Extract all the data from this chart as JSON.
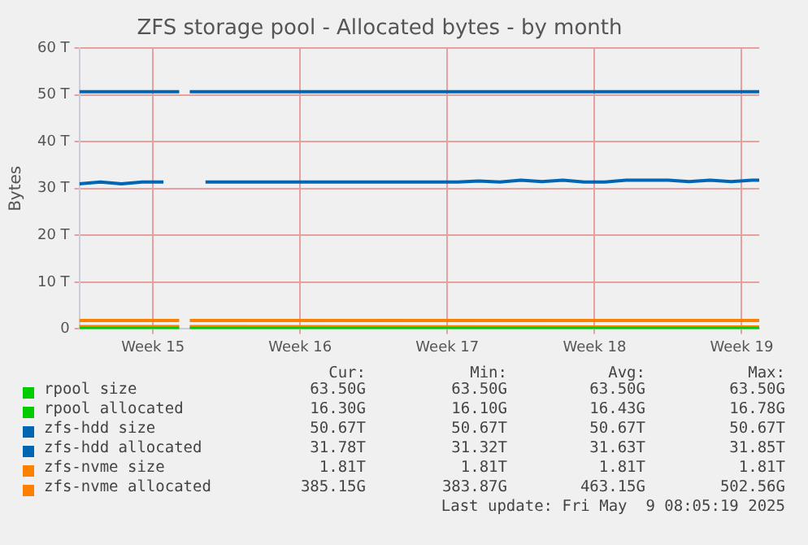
{
  "chart_data": {
    "type": "line",
    "title": "ZFS storage pool - Allocated bytes - by month",
    "ylabel": "Bytes",
    "x": [
      "2025-04-07",
      "2025-04-08",
      "2025-04-09",
      "2025-04-10",
      "2025-04-11",
      "2025-04-12",
      "2025-04-13",
      "2025-04-14",
      "2025-04-15",
      "2025-04-16",
      "2025-04-17",
      "2025-04-18",
      "2025-04-19",
      "2025-04-20",
      "2025-04-21",
      "2025-04-22",
      "2025-04-23",
      "2025-04-24",
      "2025-04-25",
      "2025-04-26",
      "2025-04-27",
      "2025-04-28",
      "2025-04-29",
      "2025-04-30",
      "2025-05-01",
      "2025-05-02",
      "2025-05-03",
      "2025-05-04",
      "2025-05-05",
      "2025-05-06",
      "2025-05-07",
      "2025-05-08",
      "2025-05-09",
      "2025-05-09T08:00"
    ],
    "xlim": [
      "2025-04-07",
      "2025-05-09T08:00"
    ],
    "xticks": [
      {
        "value": "2025-04-10T12:00",
        "label": "Week 15"
      },
      {
        "value": "2025-04-17T12:00",
        "label": "Week 16"
      },
      {
        "value": "2025-04-24T12:00",
        "label": "Week 17"
      },
      {
        "value": "2025-05-01T12:00",
        "label": "Week 18"
      },
      {
        "value": "2025-05-08T12:00",
        "label": "Week 19"
      }
    ],
    "ylim": [
      0,
      60
    ],
    "yticks": [
      {
        "value": 0,
        "label": "0"
      },
      {
        "value": 10,
        "label": "10 T"
      },
      {
        "value": 20,
        "label": "20 T"
      },
      {
        "value": 30,
        "label": "30 T"
      },
      {
        "value": 40,
        "label": "40 T"
      },
      {
        "value": 50,
        "label": "50 T"
      },
      {
        "value": 60,
        "label": "60 T"
      }
    ],
    "series": [
      {
        "name": "rpool size",
        "color": "#00cc00",
        "x": [
          "2025-04-07",
          "2025-04-11T18:00",
          "2025-04-12",
          "2025-04-12T06:00",
          "2025-05-09T08:00"
        ],
        "values": [
          0.1,
          0.1,
          null,
          0.1,
          0.1
        ]
      },
      {
        "name": "rpool allocated",
        "color": "#00cc00",
        "values": [
          null,
          null,
          null,
          null,
          null,
          null,
          null,
          null,
          null,
          null,
          null,
          null,
          null,
          null,
          null,
          null,
          null,
          null,
          null,
          null,
          null,
          null,
          null,
          null,
          null,
          null,
          null,
          null,
          null,
          null,
          null,
          null,
          null,
          null
        ]
      },
      {
        "name": "zfs-hdd size",
        "color": "#0066b3",
        "x": [
          "2025-04-07",
          "2025-04-11T18:00",
          "2025-04-12",
          "2025-04-12T06:00",
          "2025-05-09T08:00"
        ],
        "values": [
          50.7,
          50.7,
          null,
          50.7,
          50.7
        ]
      },
      {
        "name": "zfs-hdd allocated",
        "color": "#0066b3",
        "values": [
          31.0,
          31.4,
          31.0,
          31.4,
          31.4,
          null,
          31.4,
          31.4,
          31.4,
          31.4,
          31.4,
          31.4,
          31.4,
          31.4,
          31.4,
          31.4,
          31.4,
          31.4,
          31.4,
          31.6,
          31.4,
          31.8,
          31.5,
          31.8,
          31.4,
          31.4,
          31.8,
          31.8,
          31.8,
          31.5,
          31.8,
          31.5,
          31.8,
          31.8
        ]
      },
      {
        "name": "zfs-nvme size",
        "color": "#ff8000",
        "x": [
          "2025-04-07",
          "2025-04-11T18:00",
          "2025-04-12",
          "2025-04-12T06:00",
          "2025-05-09T08:00"
        ],
        "values": [
          1.8,
          1.8,
          null,
          1.8,
          1.8
        ]
      },
      {
        "name": "zfs-nvme allocated",
        "color": "#ff8000",
        "x": [
          "2025-04-07",
          "2025-04-11T18:00",
          "2025-04-12",
          "2025-04-12T06:00",
          "2025-05-09T08:00"
        ],
        "values": [
          0.5,
          0.5,
          null,
          0.5,
          0.4
        ]
      }
    ],
    "annotations": [
      "Cur:",
      "Min:",
      "Avg:",
      "Max:",
      "63.50G",
      "63.50G",
      "63.50G",
      "63.50G",
      "16.30G",
      "16.10G",
      "16.43G",
      "16.78G",
      "50.67T",
      "50.67T",
      "50.67T",
      "50.67T",
      "31.78T",
      "31.32T",
      "31.63T",
      "31.85T",
      "1.81T",
      "1.81T",
      "1.81T",
      "1.81T",
      "385.15G",
      "383.87G",
      "463.15G",
      "502.56G",
      "Last update: Fri May  9 08:05:19 2025"
    ],
    "grid": true,
    "legend": "bottom",
    "marker": "none",
    "line_style": "solid"
  }
}
